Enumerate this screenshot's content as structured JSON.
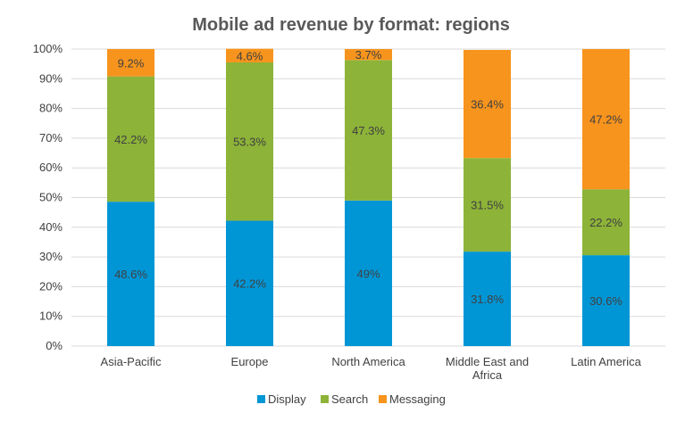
{
  "chart_data": {
    "type": "bar",
    "stacked": true,
    "title": "Mobile ad revenue by format: regions",
    "categories": [
      [
        "Asia-Pacific"
      ],
      [
        "Europe"
      ],
      [
        "North America"
      ],
      [
        "Middle East and",
        "Africa"
      ],
      [
        "Latin America"
      ]
    ],
    "series": [
      {
        "name": "Display",
        "color": "#0096D6",
        "values": [
          48.6,
          42.2,
          49,
          31.8,
          30.6
        ],
        "labels": [
          "48.6%",
          "42.2%",
          "49%",
          "31.8%",
          "30.6%"
        ]
      },
      {
        "name": "Search",
        "color": "#8DB338",
        "values": [
          42.2,
          53.3,
          47.3,
          31.5,
          22.2
        ],
        "labels": [
          "42.2%",
          "53.3%",
          "47.3%",
          "31.5%",
          "22.2%"
        ]
      },
      {
        "name": "Messaging",
        "color": "#F7941D",
        "values": [
          9.2,
          4.6,
          3.7,
          36.4,
          47.2
        ],
        "labels": [
          "9.2%",
          "4.6%",
          "3.7%",
          "36.4%",
          "47.2%"
        ]
      }
    ],
    "yticks": [
      "0%",
      "10%",
      "20%",
      "30%",
      "40%",
      "50%",
      "60%",
      "70%",
      "80%",
      "90%",
      "100%"
    ],
    "ylim": [
      0,
      100
    ],
    "grid": true,
    "legend_position": "bottom"
  }
}
